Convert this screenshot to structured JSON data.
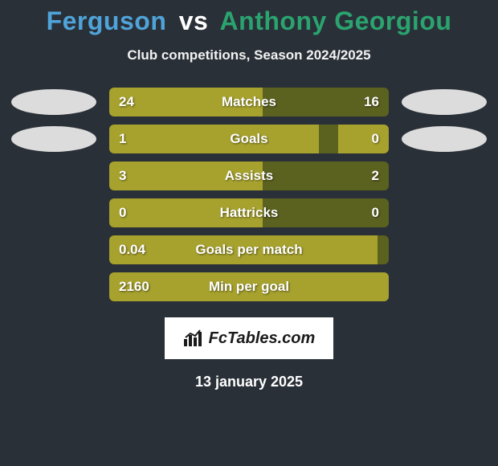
{
  "title": {
    "player1": "Ferguson",
    "vs": "vs",
    "player2": "Anthony Georgiou",
    "player1_color": "#4fa3d9",
    "player2_color": "#2aa36f"
  },
  "subtitle": "Club competitions, Season 2024/2025",
  "colors": {
    "bar_fill": "#a7a22e",
    "bar_track": "#5b611f",
    "badge_left": "#dcdcdc",
    "badge_right": "#dcdcdc",
    "background": "#2a3038"
  },
  "stats": [
    {
      "label": "Matches",
      "left_value": "24",
      "right_value": "16",
      "left_pct": 55,
      "right_pct": 0,
      "show_badges": true
    },
    {
      "label": "Goals",
      "left_value": "1",
      "right_value": "0",
      "left_pct": 75,
      "right_pct": 18,
      "show_badges": true
    },
    {
      "label": "Assists",
      "left_value": "3",
      "right_value": "2",
      "left_pct": 55,
      "right_pct": 0,
      "show_badges": false
    },
    {
      "label": "Hattricks",
      "left_value": "0",
      "right_value": "0",
      "left_pct": 55,
      "right_pct": 0,
      "show_badges": false
    },
    {
      "label": "Goals per match",
      "left_value": "0.04",
      "right_value": "",
      "left_pct": 96,
      "right_pct": 0,
      "show_badges": false
    },
    {
      "label": "Min per goal",
      "left_value": "2160",
      "right_value": "",
      "left_pct": 100,
      "right_pct": 0,
      "show_badges": false
    }
  ],
  "footer": {
    "logo_text": "FcTables.com",
    "date": "13 january 2025"
  }
}
